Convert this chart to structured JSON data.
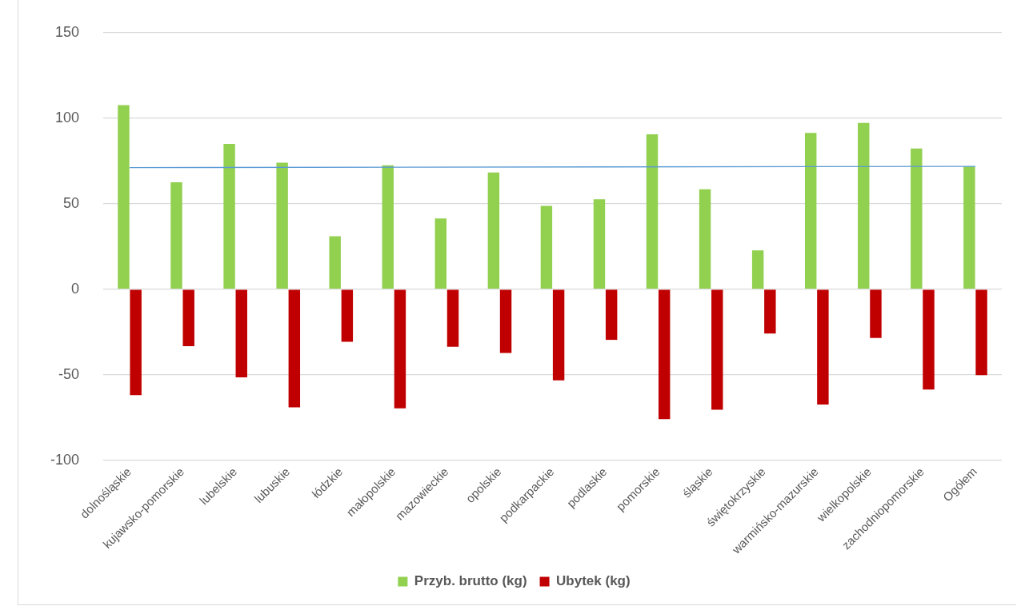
{
  "chart_data": {
    "type": "bar",
    "categories": [
      "dolnośląskie",
      "kujawsko-pomorskie",
      "lubelskie",
      "lubuskie",
      "łódzkie",
      "małopolskie",
      "mazowieckie",
      "opolskie",
      "podkarpackie",
      "podlaskie",
      "pomorskie",
      "śląskie",
      "świętokrzyskie",
      "warmińsko-mazurskie",
      "wielkopolskie",
      "zachodniopomorskie",
      "Ogółem"
    ],
    "series": [
      {
        "name": "Przyb. brutto (kg)",
        "color": "#92d050",
        "values": [
          107.6,
          62.5,
          85,
          74,
          31,
          72.4,
          41.4,
          68.2,
          48.7,
          52.6,
          90.6,
          58.4,
          22.7,
          91.4,
          97.2,
          82.2,
          71.7
        ]
      },
      {
        "name": "Ubytek (kg)",
        "color": "#c00000",
        "values": [
          -61.9,
          -33.3,
          -51.5,
          -69,
          -30.7,
          -69.6,
          -33.6,
          -37.3,
          -53.3,
          -29.6,
          -76,
          -70.5,
          -25.9,
          -67.4,
          -28.5,
          -58.6,
          -50.2
        ]
      },
      {
        "type": "line",
        "color": "#5b9bd5",
        "marker": "none",
        "values": [
          71.1,
          null,
          null,
          null,
          null,
          null,
          null,
          null,
          null,
          null,
          null,
          null,
          null,
          null,
          null,
          null,
          71.8
        ]
      }
    ],
    "ylim": [
      -100,
      150
    ],
    "yticks": [
      -100,
      -50,
      0,
      50,
      100,
      150
    ],
    "grid": "y",
    "legend": "bottom"
  }
}
